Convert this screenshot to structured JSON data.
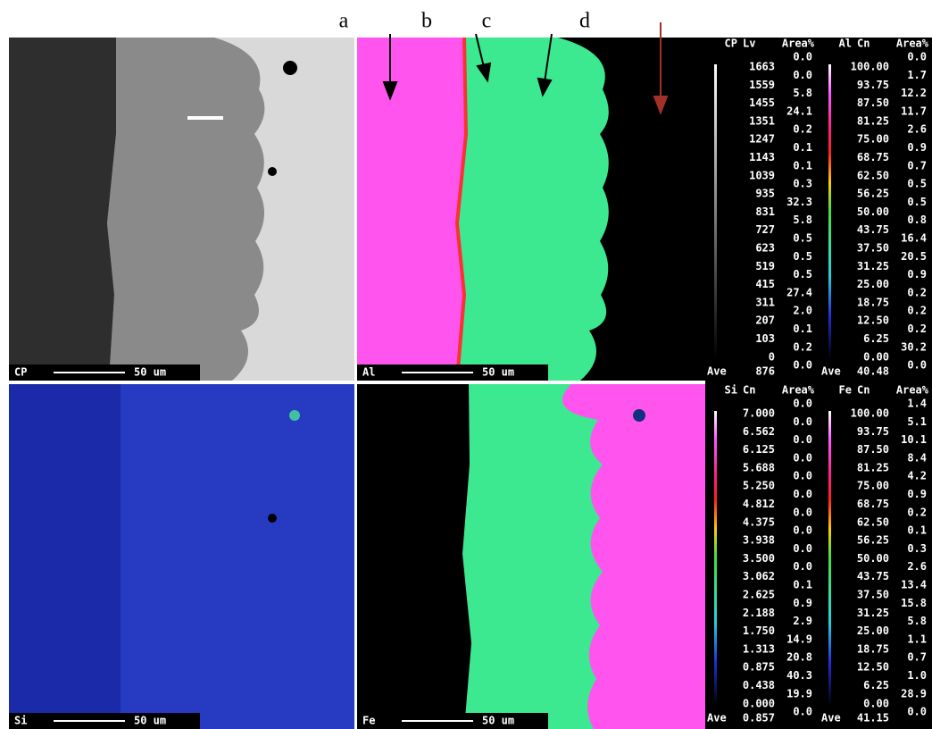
{
  "labels": [
    "a",
    "b",
    "c",
    "d"
  ],
  "panels": [
    {
      "label": "CP",
      "scale": "50 um"
    },
    {
      "label": "Al",
      "scale": "50 um"
    },
    {
      "label": "Si",
      "scale": "50 um"
    },
    {
      "label": "Fe",
      "scale": "50 um"
    }
  ],
  "legends": [
    {
      "element": "CP",
      "mode": "Lv",
      "area_header": "Area%",
      "levels": [
        "1663",
        "1559",
        "1455",
        "1351",
        "1247",
        "1143",
        "1039",
        "935",
        "831",
        "727",
        "623",
        "519",
        "415",
        "311",
        "207",
        "103",
        "0"
      ],
      "areas": [
        "0.0",
        "0.0",
        "5.8",
        "24.1",
        "0.2",
        "0.1",
        "0.1",
        "0.3",
        "32.3",
        "5.8",
        "0.5",
        "0.5",
        "0.5",
        "27.4",
        "2.0",
        "0.1",
        "0.2",
        "0.0"
      ],
      "ave_label": "Ave",
      "ave": "876"
    },
    {
      "element": "Al",
      "mode": "Cn",
      "area_header": "Area%",
      "levels": [
        "100.00",
        "93.75",
        "87.50",
        "81.25",
        "75.00",
        "68.75",
        "62.50",
        "56.25",
        "50.00",
        "43.75",
        "37.50",
        "31.25",
        "25.00",
        "18.75",
        "12.50",
        "6.25",
        "0.00"
      ],
      "areas": [
        "0.0",
        "1.7",
        "12.2",
        "11.7",
        "2.6",
        "0.9",
        "0.7",
        "0.5",
        "0.5",
        "0.8",
        "16.4",
        "20.5",
        "0.9",
        "0.2",
        "0.2",
        "0.2",
        "30.2",
        "0.0"
      ],
      "ave_label": "Ave",
      "ave": "40.48"
    },
    {
      "element": "Si",
      "mode": "Cn",
      "area_header": "Area%",
      "levels": [
        "7.000",
        "6.562",
        "6.125",
        "5.688",
        "5.250",
        "4.812",
        "4.375",
        "3.938",
        "3.500",
        "3.062",
        "2.625",
        "2.188",
        "1.750",
        "1.313",
        "0.875",
        "0.438",
        "0.000"
      ],
      "areas": [
        "0.0",
        "0.0",
        "0.0",
        "0.0",
        "0.0",
        "0.0",
        "0.0",
        "0.0",
        "0.0",
        "0.0",
        "0.1",
        "0.9",
        "2.9",
        "14.9",
        "20.8",
        "40.3",
        "19.9",
        "0.0"
      ],
      "ave_label": "Ave",
      "ave": "0.857"
    },
    {
      "element": "Fe",
      "mode": "Cn",
      "area_header": "Area%",
      "levels": [
        "100.00",
        "93.75",
        "87.50",
        "81.25",
        "75.00",
        "68.75",
        "62.50",
        "56.25",
        "50.00",
        "43.75",
        "37.50",
        "31.25",
        "25.00",
        "18.75",
        "12.50",
        "6.25",
        "0.00"
      ],
      "areas": [
        "1.4",
        "5.1",
        "10.1",
        "8.4",
        "4.2",
        "0.9",
        "0.2",
        "0.1",
        "0.3",
        "2.6",
        "13.4",
        "15.8",
        "5.8",
        "1.1",
        "0.7",
        "1.0",
        "28.9",
        "0.0"
      ],
      "ave_label": "Ave",
      "ave": "41.15"
    }
  ]
}
